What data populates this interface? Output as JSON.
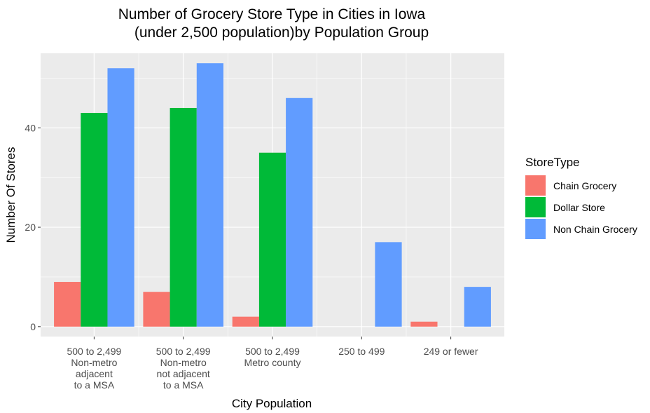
{
  "chart_data": {
    "type": "bar",
    "title_lines": [
      "Number of Grocery Store Type in Cities in Iowa",
      "(under 2,500 population)by Population Group"
    ],
    "xlabel": "City Population",
    "ylabel": "Number Of Stores",
    "ylim": [
      -2,
      55
    ],
    "yticks": [
      0,
      20,
      40
    ],
    "grid": true,
    "legend_position": "right",
    "legend_title": "StoreType",
    "categories": [
      [
        "500 to 2,499",
        "Non-metro",
        "adjacent",
        "to a MSA"
      ],
      [
        "500 to 2,499",
        "Non-metro",
        "not adjacent",
        "to a MSA"
      ],
      [
        "500 to 2,499",
        "Metro county"
      ],
      [
        "250 to 499"
      ],
      [
        "249 or fewer"
      ]
    ],
    "series": [
      {
        "name": "Chain Grocery",
        "color": "#F8766D",
        "values": [
          9,
          7,
          2,
          0,
          1
        ]
      },
      {
        "name": "Dollar Store",
        "color": "#00BA38",
        "values": [
          43,
          44,
          35,
          0,
          0
        ]
      },
      {
        "name": "Non Chain Grocery",
        "color": "#619CFF",
        "values": [
          52,
          53,
          46,
          17,
          8
        ]
      }
    ]
  }
}
